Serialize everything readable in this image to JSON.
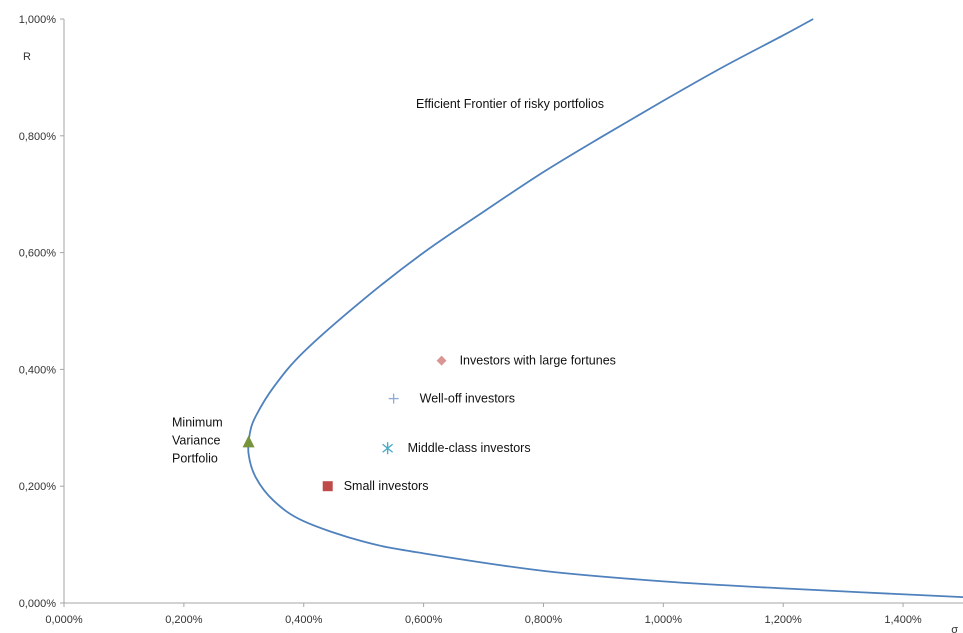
{
  "chart_data": {
    "type": "scatter",
    "title": "",
    "xlabel": "σ",
    "ylabel": "R",
    "xlim": [
      0,
      1.5
    ],
    "ylim": [
      0,
      1.0
    ],
    "x_ticks": [
      "0,000%",
      "0,200%",
      "0,400%",
      "0,600%",
      "0,800%",
      "1,000%",
      "1,200%",
      "1,400%"
    ],
    "y_ticks": [
      "0,000%",
      "0,200%",
      "0,400%",
      "0,600%",
      "0,800%",
      "1,000%"
    ],
    "grid": false,
    "curve": {
      "label": "Efficient Frontier of risky portfolios",
      "color": "#4f81bd",
      "points": [
        {
          "x": 1.5,
          "y": 0.01
        },
        {
          "x": 1.2,
          "y": 0.025
        },
        {
          "x": 1.0,
          "y": 0.037
        },
        {
          "x": 0.8,
          "y": 0.055
        },
        {
          "x": 0.6,
          "y": 0.085
        },
        {
          "x": 0.5,
          "y": 0.105
        },
        {
          "x": 0.4,
          "y": 0.14
        },
        {
          "x": 0.35,
          "y": 0.175
        },
        {
          "x": 0.32,
          "y": 0.215
        },
        {
          "x": 0.308,
          "y": 0.255
        },
        {
          "x": 0.31,
          "y": 0.29
        },
        {
          "x": 0.32,
          "y": 0.32
        },
        {
          "x": 0.35,
          "y": 0.37
        },
        {
          "x": 0.4,
          "y": 0.43
        },
        {
          "x": 0.5,
          "y": 0.52
        },
        {
          "x": 0.6,
          "y": 0.6
        },
        {
          "x": 0.7,
          "y": 0.67
        },
        {
          "x": 0.8,
          "y": 0.738
        },
        {
          "x": 0.9,
          "y": 0.8
        },
        {
          "x": 1.0,
          "y": 0.86
        },
        {
          "x": 1.1,
          "y": 0.918
        },
        {
          "x": 1.2,
          "y": 0.972
        },
        {
          "x": 1.25,
          "y": 1.0
        }
      ]
    },
    "points": [
      {
        "label": "Minimum Variance Portfolio",
        "x": 0.308,
        "y": 0.275,
        "marker": "triangle",
        "color": "#77933c"
      },
      {
        "label": "Investors with large fortunes",
        "x": 0.63,
        "y": 0.415,
        "marker": "diamond",
        "color": "#d99694"
      },
      {
        "label": "Well-off investors",
        "x": 0.55,
        "y": 0.35,
        "marker": "plus",
        "color": "#8eaadb"
      },
      {
        "label": "Middle-class investors",
        "x": 0.54,
        "y": 0.265,
        "marker": "asterisk",
        "color": "#4bacc6"
      },
      {
        "label": "Small investors",
        "x": 0.44,
        "y": 0.2,
        "marker": "square",
        "color": "#be4b48"
      }
    ],
    "axis_color": "#a6a6a6"
  }
}
